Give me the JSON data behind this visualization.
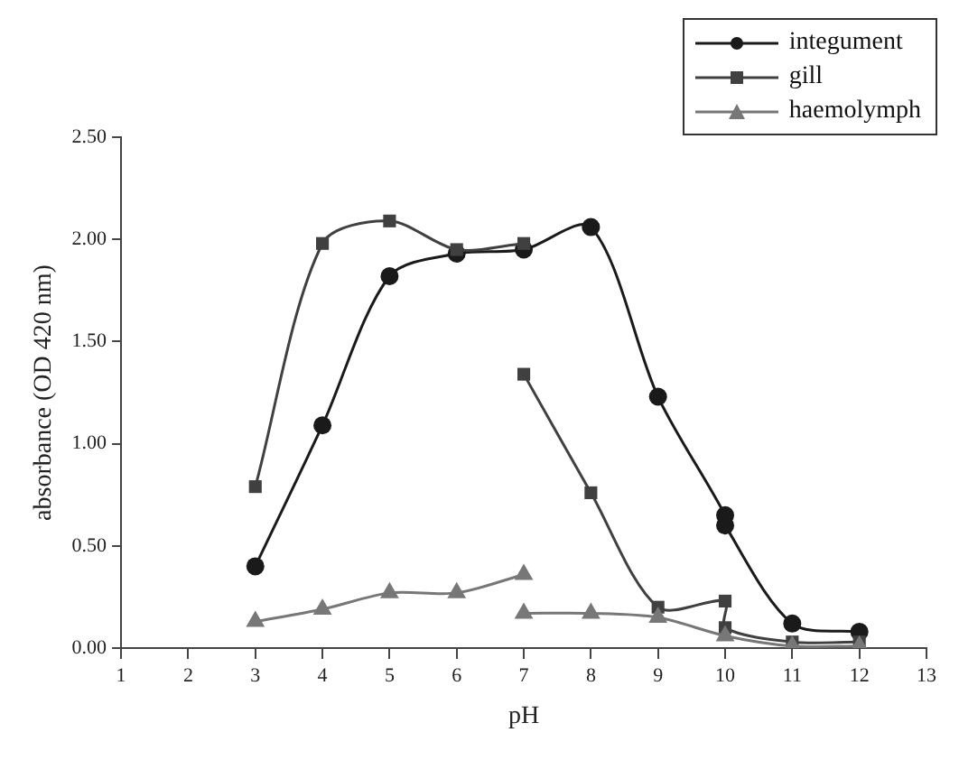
{
  "chart_data": {
    "type": "line",
    "xlabel": "pH",
    "ylabel": "absorbance (OD 420 nm)",
    "xlim": [
      1,
      13
    ],
    "xticks": [
      1,
      2,
      3,
      4,
      5,
      6,
      7,
      8,
      9,
      10,
      11,
      12,
      13
    ],
    "ylim": [
      0,
      2.5
    ],
    "yticks": [
      {
        "value": 0,
        "label": "0.00"
      },
      {
        "value": 0.5,
        "label": "0.50"
      },
      {
        "value": 1,
        "label": "1.00"
      },
      {
        "value": 1.5,
        "label": "1.50"
      },
      {
        "value": 2,
        "label": "2.00"
      },
      {
        "value": 2.5,
        "label": "2.50"
      }
    ],
    "grid": false,
    "legend": "top right",
    "line_style": "solid",
    "series": [
      {
        "name": "integument",
        "color": "#1a1a1a",
        "marker": "circle",
        "x": [
          3,
          4,
          5,
          6,
          7,
          8,
          9,
          10,
          10,
          11,
          12
        ],
        "values": [
          0.4,
          1.09,
          1.82,
          1.93,
          1.95,
          2.06,
          1.23,
          0.65,
          0.6,
          0.12,
          0.08
        ]
      },
      {
        "name": "gill",
        "color": "#404040",
        "marker": "square",
        "x": [
          3,
          4,
          5,
          6,
          7,
          null,
          7,
          8,
          9,
          10,
          10,
          11,
          12
        ],
        "values": [
          0.79,
          1.98,
          2.09,
          1.95,
          1.98,
          null,
          1.34,
          0.76,
          0.2,
          0.23,
          0.1,
          0.03,
          0.03
        ]
      },
      {
        "name": "haemolymph",
        "color": "#777777",
        "marker": "triangle",
        "x": [
          3,
          4,
          5,
          6,
          7,
          null,
          7,
          8,
          9,
          10,
          11,
          12
        ],
        "values": [
          0.13,
          0.19,
          0.27,
          0.27,
          0.36,
          null,
          0.17,
          0.17,
          0.15,
          0.06,
          0.01,
          0.01
        ]
      }
    ]
  }
}
